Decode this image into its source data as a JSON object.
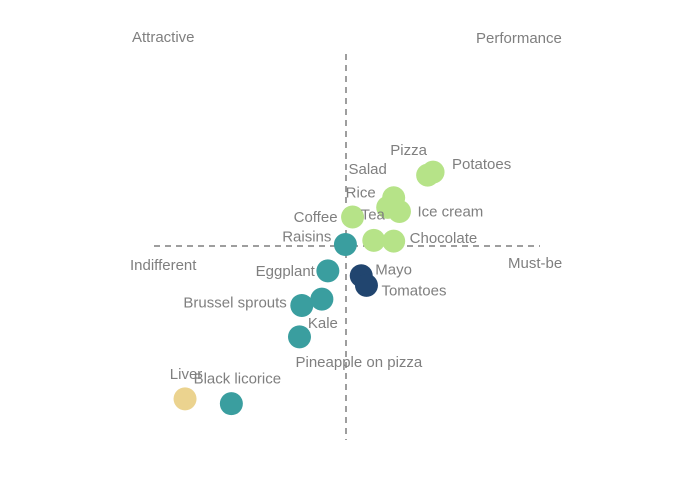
{
  "chart_data": {
    "type": "scatter",
    "title": "",
    "xlabel": "",
    "ylabel": "",
    "grid": false,
    "xlim": [
      -10,
      10
    ],
    "ylim": [
      -10,
      10
    ],
    "quadrant_labels": {
      "top_left": "Attractive",
      "top_right": "Performance",
      "left": "Indifferent",
      "right": "Must-be"
    },
    "colors": {
      "green": "#b6e388",
      "teal": "#3a9e9f",
      "navy": "#21456f",
      "tan": "#ebd38f",
      "axis": "#7f7f7f",
      "label": "#7f7f7f"
    },
    "points": [
      {
        "label": "Pizza",
        "x": 4.23,
        "y": 3.67,
        "color": "green"
      },
      {
        "label": "Potatoes",
        "x": 4.51,
        "y": 3.83,
        "color": "green"
      },
      {
        "label": "Salad",
        "x": 2.47,
        "y": 2.5,
        "color": "green"
      },
      {
        "label": "Rice",
        "x": 2.16,
        "y": 2.0,
        "color": "green"
      },
      {
        "label": "Ice cream",
        "x": 2.77,
        "y": 1.79,
        "color": "green"
      },
      {
        "label": "Coffee",
        "x": 0.34,
        "y": 1.5,
        "color": "green"
      },
      {
        "label": "Tea",
        "x": 1.44,
        "y": 0.29,
        "color": "green"
      },
      {
        "label": "Chocolate",
        "x": 2.47,
        "y": 0.25,
        "color": "green"
      },
      {
        "label": "Raisins",
        "x": -0.03,
        "y": 0.08,
        "color": "teal"
      },
      {
        "label": "Mayo",
        "x": 0.79,
        "y": -1.54,
        "color": "navy"
      },
      {
        "label": "Tomatoes",
        "x": 1.06,
        "y": -2.04,
        "color": "navy"
      },
      {
        "label": "Eggplant",
        "x": -0.94,
        "y": -1.29,
        "color": "teal"
      },
      {
        "label": "Kale",
        "x": -1.25,
        "y": -2.75,
        "color": "teal"
      },
      {
        "label": "Brussel sprouts",
        "x": -2.29,
        "y": -3.08,
        "color": "teal"
      },
      {
        "label": "Pineapple on pizza",
        "x": -2.41,
        "y": -4.71,
        "color": "teal"
      },
      {
        "label": "Liver",
        "x": -8.34,
        "y": -7.92,
        "color": "tan"
      },
      {
        "label": "Black licorice",
        "x": -5.94,
        "y": -8.17,
        "color": "teal"
      }
    ]
  }
}
